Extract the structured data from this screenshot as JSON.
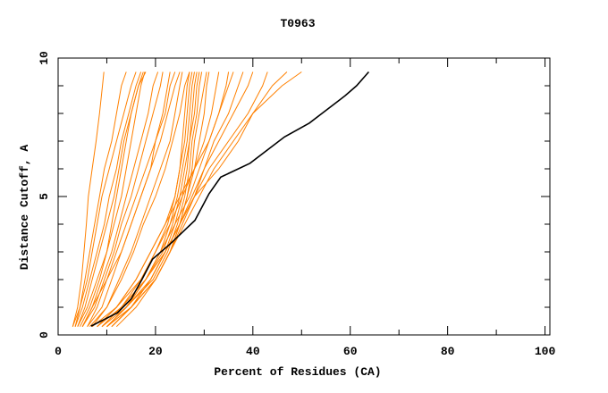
{
  "chart_data": {
    "type": "line",
    "title": "T0963",
    "xlabel": "Percent of Residues (CA)",
    "ylabel": "Distance Cutoff, A",
    "xlim": [
      0,
      101
    ],
    "ylim": [
      0,
      10
    ],
    "xticks": [
      "0",
      "20",
      "40",
      "60",
      "80",
      "100"
    ],
    "xtick_values": [
      0,
      20,
      40,
      60,
      80,
      100
    ],
    "yticks": [
      "0",
      "5",
      "10"
    ],
    "ytick_values": [
      0,
      5,
      10
    ],
    "grid": false,
    "colors": {
      "models": "#ff8000",
      "highlight": "#000000"
    },
    "y_levels": [
      0.3,
      1,
      2,
      3,
      4,
      5,
      6,
      7,
      8,
      9,
      9.5
    ],
    "model_series_x": [
      [
        3,
        4,
        4.8,
        5.3,
        5.8,
        6.2,
        7,
        7.8,
        8.5,
        9.1,
        9.4
      ],
      [
        3,
        4.5,
        6,
        7,
        8,
        9,
        10.5,
        12,
        13.5,
        15,
        16
      ],
      [
        3.5,
        5,
        6.5,
        8,
        9.5,
        10.5,
        12,
        13,
        14.5,
        16,
        17
      ],
      [
        4,
        5.5,
        7,
        8.5,
        10,
        11.5,
        12.5,
        13.5,
        15,
        16.5,
        17.5
      ],
      [
        4,
        6,
        8,
        10,
        11,
        12,
        13,
        14,
        15,
        16.5,
        18
      ],
      [
        5,
        7,
        9,
        11,
        12.5,
        14,
        15.5,
        17,
        18.5,
        19.5,
        20.5
      ],
      [
        5,
        7.5,
        9.5,
        11.5,
        13,
        15,
        16.5,
        18,
        19.5,
        21,
        21.5
      ],
      [
        4.5,
        6.5,
        8.5,
        10,
        11.5,
        13,
        14,
        15,
        16,
        17,
        17.8
      ],
      [
        6,
        8,
        10,
        12,
        14,
        16,
        18,
        20,
        21.5,
        22.5,
        23
      ],
      [
        6,
        9,
        11,
        13,
        15,
        17,
        19,
        21,
        22.5,
        24,
        25
      ],
      [
        7,
        10,
        12.5,
        15,
        17,
        19,
        21,
        23,
        24,
        25,
        25.5
      ],
      [
        6.5,
        10,
        13,
        15.5,
        17.5,
        20,
        22,
        23.5,
        25,
        26,
        27
      ],
      [
        8,
        12,
        16,
        19,
        22,
        24,
        25,
        26,
        26.5,
        27,
        27.5
      ],
      [
        8,
        13,
        18,
        21,
        23,
        24.5,
        25.5,
        26.5,
        27,
        27.5,
        28
      ],
      [
        9,
        13,
        18,
        21.5,
        23.5,
        25,
        26,
        27,
        27.5,
        28,
        28.5
      ],
      [
        9,
        14,
        19,
        22,
        24,
        25.5,
        26.5,
        27,
        28,
        28.5,
        29
      ],
      [
        10,
        14,
        19.5,
        22.5,
        24.5,
        26,
        27,
        27.5,
        28.5,
        29,
        29.5
      ],
      [
        10,
        15,
        20,
        23,
        25,
        26.5,
        27.5,
        28,
        29,
        30,
        30.5
      ],
      [
        7,
        12,
        17,
        20,
        22.5,
        24,
        25,
        25.5,
        26,
        26.5,
        27
      ],
      [
        11,
        15,
        20,
        23,
        25,
        26.5,
        28,
        29,
        30,
        30.5,
        31
      ],
      [
        9,
        13,
        17,
        20,
        23,
        25.5,
        28,
        30,
        31.5,
        32.5,
        33
      ],
      [
        10,
        14,
        18,
        21,
        24,
        27,
        29,
        31,
        33,
        34.5,
        35
      ],
      [
        8,
        12,
        16,
        19,
        22,
        25,
        28,
        31,
        33,
        35,
        36
      ],
      [
        10,
        15,
        19,
        22,
        25,
        28,
        30,
        32,
        35,
        37,
        38
      ],
      [
        11,
        15,
        19,
        22,
        25,
        27.5,
        30,
        33,
        36,
        39,
        40
      ],
      [
        11,
        15,
        20,
        23,
        25.5,
        28,
        31,
        35,
        39,
        42,
        43
      ],
      [
        10,
        14,
        18,
        22,
        25,
        28,
        33,
        37,
        40,
        44,
        47
      ],
      [
        12,
        16,
        20,
        23,
        26,
        29,
        32,
        36,
        40,
        46,
        50
      ],
      [
        5,
        7,
        10,
        13,
        15,
        17,
        19,
        20,
        22,
        23,
        24
      ],
      [
        3.5,
        4.5,
        5.5,
        6.5,
        7.5,
        8.5,
        9.5,
        11,
        12,
        13,
        14
      ]
    ],
    "highlight_series": {
      "x": [
        6.75,
        12.2,
        15,
        17.2,
        19.4,
        23.1,
        28.1,
        31,
        33.4,
        39.4,
        46.5,
        51.6,
        59,
        61.3,
        63.8
      ],
      "y": [
        0.32,
        0.8,
        1.3,
        2.0,
        2.74,
        3.3,
        4.14,
        5.1,
        5.7,
        6.2,
        7.15,
        7.65,
        8.65,
        9.0,
        9.5
      ]
    }
  }
}
